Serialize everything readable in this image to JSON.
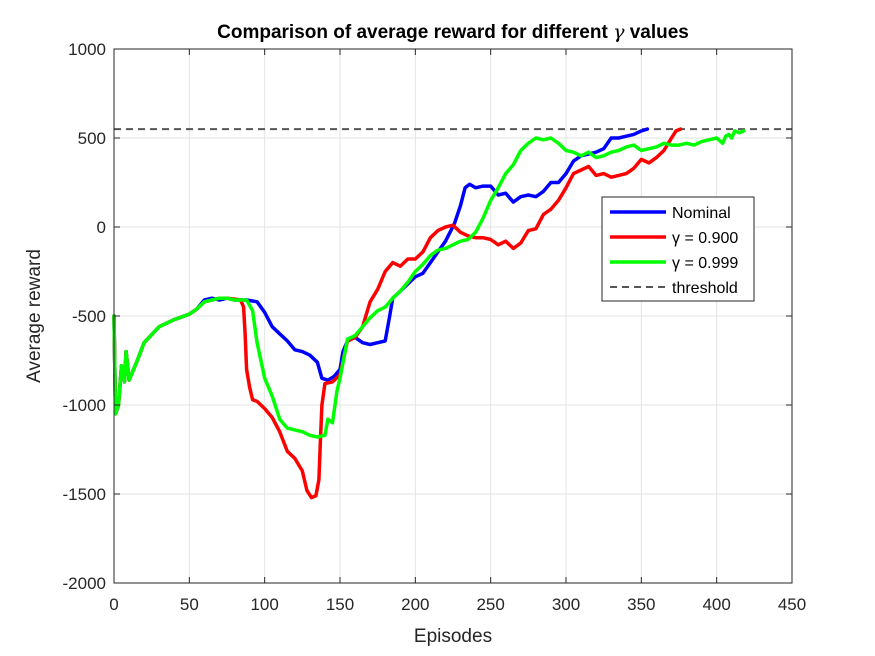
{
  "chart_data": {
    "type": "line",
    "title_prefix": "Comparison of average reward for different ",
    "title_symbol": "γ",
    "title_suffix": " values",
    "xlabel": "Episodes",
    "ylabel": "Average reward",
    "xlim": [
      0,
      450
    ],
    "ylim": [
      -2000,
      1000
    ],
    "xticks": [
      0,
      50,
      100,
      150,
      200,
      250,
      300,
      350,
      400,
      450
    ],
    "yticks": [
      -2000,
      -1500,
      -1000,
      -500,
      0,
      500,
      1000
    ],
    "grid": true,
    "legend_position": "right",
    "threshold": {
      "name": "threshold",
      "value": 550,
      "color": "#555555",
      "dash": true
    },
    "series": [
      {
        "name": "Nominal",
        "color": "#0000ff",
        "points": [
          [
            0,
            -500
          ],
          [
            1,
            -1050
          ],
          [
            3,
            -1000
          ],
          [
            5,
            -780
          ],
          [
            7,
            -870
          ],
          [
            8,
            -700
          ],
          [
            10,
            -860
          ],
          [
            15,
            -760
          ],
          [
            20,
            -650
          ],
          [
            30,
            -560
          ],
          [
            40,
            -520
          ],
          [
            50,
            -490
          ],
          [
            55,
            -460
          ],
          [
            60,
            -410
          ],
          [
            65,
            -400
          ],
          [
            70,
            -410
          ],
          [
            75,
            -400
          ],
          [
            80,
            -410
          ],
          [
            85,
            -410
          ],
          [
            88,
            -410
          ],
          [
            95,
            -420
          ],
          [
            100,
            -480
          ],
          [
            105,
            -560
          ],
          [
            110,
            -600
          ],
          [
            115,
            -640
          ],
          [
            120,
            -690
          ],
          [
            125,
            -700
          ],
          [
            130,
            -720
          ],
          [
            135,
            -760
          ],
          [
            138,
            -850
          ],
          [
            142,
            -860
          ],
          [
            146,
            -840
          ],
          [
            150,
            -800
          ],
          [
            152,
            -700
          ],
          [
            155,
            -640
          ],
          [
            160,
            -620
          ],
          [
            165,
            -650
          ],
          [
            170,
            -660
          ],
          [
            175,
            -650
          ],
          [
            180,
            -640
          ],
          [
            183,
            -500
          ],
          [
            185,
            -400
          ],
          [
            190,
            -360
          ],
          [
            195,
            -320
          ],
          [
            200,
            -280
          ],
          [
            205,
            -260
          ],
          [
            210,
            -200
          ],
          [
            215,
            -140
          ],
          [
            220,
            -80
          ],
          [
            223,
            -30
          ],
          [
            226,
            20
          ],
          [
            230,
            120
          ],
          [
            233,
            220
          ],
          [
            236,
            240
          ],
          [
            240,
            220
          ],
          [
            245,
            230
          ],
          [
            250,
            230
          ],
          [
            255,
            180
          ],
          [
            260,
            190
          ],
          [
            265,
            140
          ],
          [
            270,
            170
          ],
          [
            275,
            180
          ],
          [
            280,
            170
          ],
          [
            285,
            200
          ],
          [
            290,
            250
          ],
          [
            295,
            250
          ],
          [
            300,
            300
          ],
          [
            305,
            370
          ],
          [
            310,
            400
          ],
          [
            315,
            410
          ],
          [
            320,
            420
          ],
          [
            325,
            440
          ],
          [
            330,
            500
          ],
          [
            335,
            500
          ],
          [
            340,
            510
          ],
          [
            345,
            520
          ],
          [
            350,
            540
          ],
          [
            354,
            550
          ]
        ]
      },
      {
        "name": "γ = 0.900",
        "color": "#ff0000",
        "points": [
          [
            0,
            -500
          ],
          [
            1,
            -1050
          ],
          [
            3,
            -1000
          ],
          [
            5,
            -780
          ],
          [
            7,
            -870
          ],
          [
            8,
            -700
          ],
          [
            10,
            -860
          ],
          [
            15,
            -760
          ],
          [
            20,
            -650
          ],
          [
            30,
            -560
          ],
          [
            40,
            -520
          ],
          [
            50,
            -490
          ],
          [
            55,
            -460
          ],
          [
            60,
            -420
          ],
          [
            65,
            -410
          ],
          [
            70,
            -400
          ],
          [
            75,
            -400
          ],
          [
            80,
            -405
          ],
          [
            84,
            -410
          ],
          [
            86,
            -450
          ],
          [
            87,
            -600
          ],
          [
            88,
            -800
          ],
          [
            90,
            -900
          ],
          [
            92,
            -970
          ],
          [
            95,
            -980
          ],
          [
            100,
            -1020
          ],
          [
            105,
            -1070
          ],
          [
            110,
            -1150
          ],
          [
            115,
            -1260
          ],
          [
            120,
            -1300
          ],
          [
            125,
            -1370
          ],
          [
            128,
            -1480
          ],
          [
            131,
            -1520
          ],
          [
            134,
            -1510
          ],
          [
            136,
            -1420
          ],
          [
            137,
            -1200
          ],
          [
            138,
            -1000
          ],
          [
            140,
            -880
          ],
          [
            145,
            -870
          ],
          [
            150,
            -830
          ],
          [
            155,
            -640
          ],
          [
            160,
            -620
          ],
          [
            165,
            -560
          ],
          [
            170,
            -420
          ],
          [
            175,
            -350
          ],
          [
            180,
            -250
          ],
          [
            185,
            -200
          ],
          [
            190,
            -220
          ],
          [
            195,
            -180
          ],
          [
            200,
            -180
          ],
          [
            205,
            -140
          ],
          [
            210,
            -60
          ],
          [
            215,
            -20
          ],
          [
            220,
            0
          ],
          [
            225,
            10
          ],
          [
            230,
            -30
          ],
          [
            235,
            -50
          ],
          [
            240,
            -60
          ],
          [
            245,
            -60
          ],
          [
            250,
            -70
          ],
          [
            255,
            -100
          ],
          [
            260,
            -80
          ],
          [
            265,
            -120
          ],
          [
            270,
            -90
          ],
          [
            275,
            -20
          ],
          [
            280,
            -10
          ],
          [
            285,
            70
          ],
          [
            290,
            100
          ],
          [
            295,
            150
          ],
          [
            300,
            220
          ],
          [
            305,
            300
          ],
          [
            310,
            320
          ],
          [
            315,
            340
          ],
          [
            320,
            290
          ],
          [
            325,
            300
          ],
          [
            330,
            280
          ],
          [
            335,
            290
          ],
          [
            340,
            300
          ],
          [
            345,
            330
          ],
          [
            350,
            380
          ],
          [
            355,
            360
          ],
          [
            360,
            390
          ],
          [
            365,
            430
          ],
          [
            370,
            500
          ],
          [
            373,
            540
          ],
          [
            376,
            550
          ]
        ]
      },
      {
        "name": "γ = 0.999",
        "color": "#00ff00",
        "points": [
          [
            0,
            -500
          ],
          [
            1,
            -1050
          ],
          [
            3,
            -1000
          ],
          [
            5,
            -780
          ],
          [
            7,
            -870
          ],
          [
            8,
            -700
          ],
          [
            10,
            -860
          ],
          [
            15,
            -760
          ],
          [
            20,
            -650
          ],
          [
            30,
            -560
          ],
          [
            40,
            -520
          ],
          [
            50,
            -490
          ],
          [
            55,
            -460
          ],
          [
            60,
            -420
          ],
          [
            65,
            -410
          ],
          [
            70,
            -400
          ],
          [
            75,
            -400
          ],
          [
            80,
            -410
          ],
          [
            85,
            -410
          ],
          [
            88,
            -410
          ],
          [
            92,
            -470
          ],
          [
            95,
            -650
          ],
          [
            100,
            -850
          ],
          [
            105,
            -950
          ],
          [
            110,
            -1080
          ],
          [
            115,
            -1130
          ],
          [
            120,
            -1140
          ],
          [
            125,
            -1150
          ],
          [
            130,
            -1170
          ],
          [
            135,
            -1180
          ],
          [
            140,
            -1170
          ],
          [
            142,
            -1080
          ],
          [
            145,
            -1100
          ],
          [
            148,
            -920
          ],
          [
            150,
            -850
          ],
          [
            155,
            -630
          ],
          [
            160,
            -610
          ],
          [
            165,
            -560
          ],
          [
            170,
            -510
          ],
          [
            175,
            -470
          ],
          [
            180,
            -450
          ],
          [
            185,
            -400
          ],
          [
            190,
            -360
          ],
          [
            195,
            -310
          ],
          [
            200,
            -250
          ],
          [
            205,
            -210
          ],
          [
            210,
            -160
          ],
          [
            215,
            -130
          ],
          [
            220,
            -120
          ],
          [
            225,
            -100
          ],
          [
            230,
            -80
          ],
          [
            235,
            -70
          ],
          [
            240,
            -30
          ],
          [
            245,
            50
          ],
          [
            250,
            150
          ],
          [
            255,
            220
          ],
          [
            260,
            300
          ],
          [
            265,
            350
          ],
          [
            270,
            430
          ],
          [
            275,
            470
          ],
          [
            280,
            500
          ],
          [
            285,
            490
          ],
          [
            290,
            500
          ],
          [
            295,
            470
          ],
          [
            300,
            430
          ],
          [
            305,
            420
          ],
          [
            310,
            400
          ],
          [
            315,
            420
          ],
          [
            320,
            390
          ],
          [
            325,
            400
          ],
          [
            330,
            420
          ],
          [
            335,
            430
          ],
          [
            340,
            450
          ],
          [
            345,
            460
          ],
          [
            350,
            430
          ],
          [
            355,
            440
          ],
          [
            360,
            450
          ],
          [
            365,
            470
          ],
          [
            370,
            460
          ],
          [
            375,
            460
          ],
          [
            380,
            470
          ],
          [
            385,
            460
          ],
          [
            390,
            480
          ],
          [
            395,
            490
          ],
          [
            400,
            500
          ],
          [
            404,
            470
          ],
          [
            406,
            510
          ],
          [
            408,
            520
          ],
          [
            410,
            500
          ],
          [
            412,
            540
          ],
          [
            415,
            530
          ],
          [
            418,
            540
          ]
        ]
      }
    ]
  }
}
